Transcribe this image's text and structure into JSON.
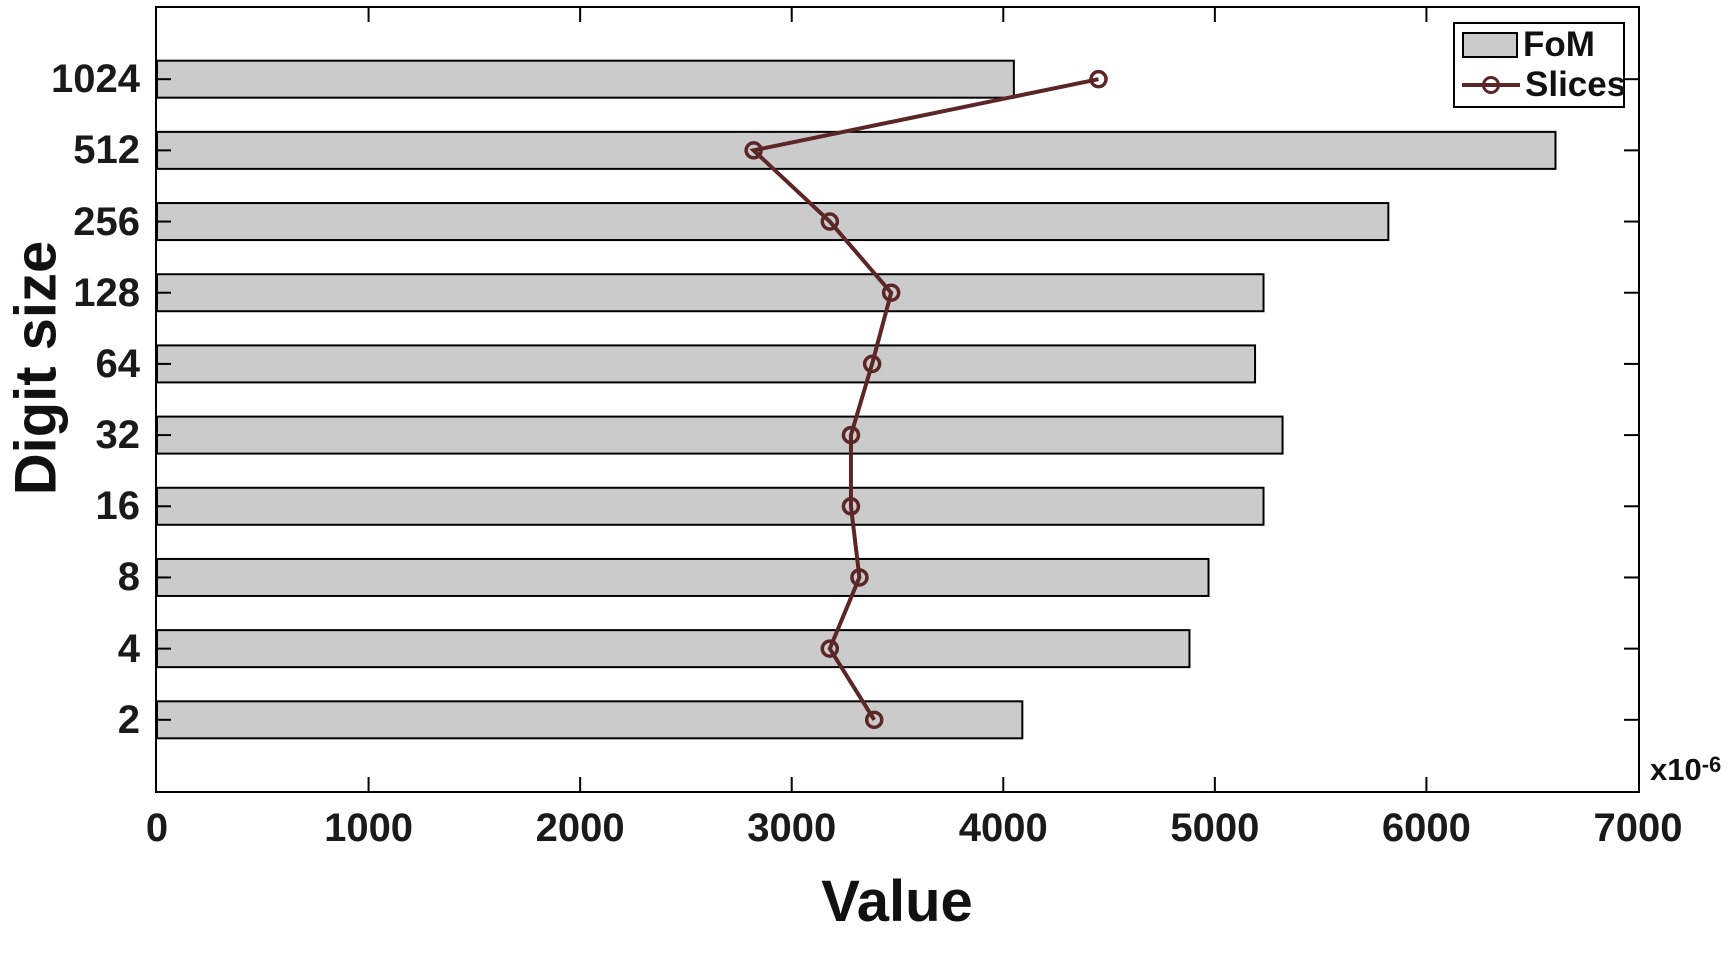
{
  "figure": {
    "background": "#ffffff",
    "axis_color": "#000000",
    "tick_label_color": "#1a1a1a"
  },
  "chart_data": {
    "type": "bar",
    "orientation": "horizontal",
    "title": "",
    "xlabel": "Value",
    "ylabel": "Digit size",
    "categories": [
      "2",
      "4",
      "8",
      "16",
      "32",
      "64",
      "128",
      "256",
      "512",
      "1024"
    ],
    "series": [
      {
        "name": "FoM",
        "type": "bar",
        "color": "#cbcbcb",
        "border_color": "#000000",
        "values": [
          4090,
          4880,
          4970,
          5230,
          5320,
          5190,
          5230,
          5820,
          6610,
          4050
        ]
      },
      {
        "name": "Slices",
        "type": "line",
        "color": "#5c2626",
        "marker": "circle-hollow",
        "values": [
          3390,
          3180,
          3320,
          3280,
          3280,
          3380,
          3470,
          3180,
          2820,
          4450
        ]
      }
    ],
    "xlim": [
      0,
      7000
    ],
    "x_ticks": [
      0,
      1000,
      2000,
      3000,
      4000,
      5000,
      6000,
      7000
    ],
    "x_offset_label": {
      "base": "x10",
      "exp": "-6"
    },
    "grid": false,
    "legend": {
      "position": "top-right",
      "entries": [
        "FoM",
        "Slices"
      ]
    }
  }
}
